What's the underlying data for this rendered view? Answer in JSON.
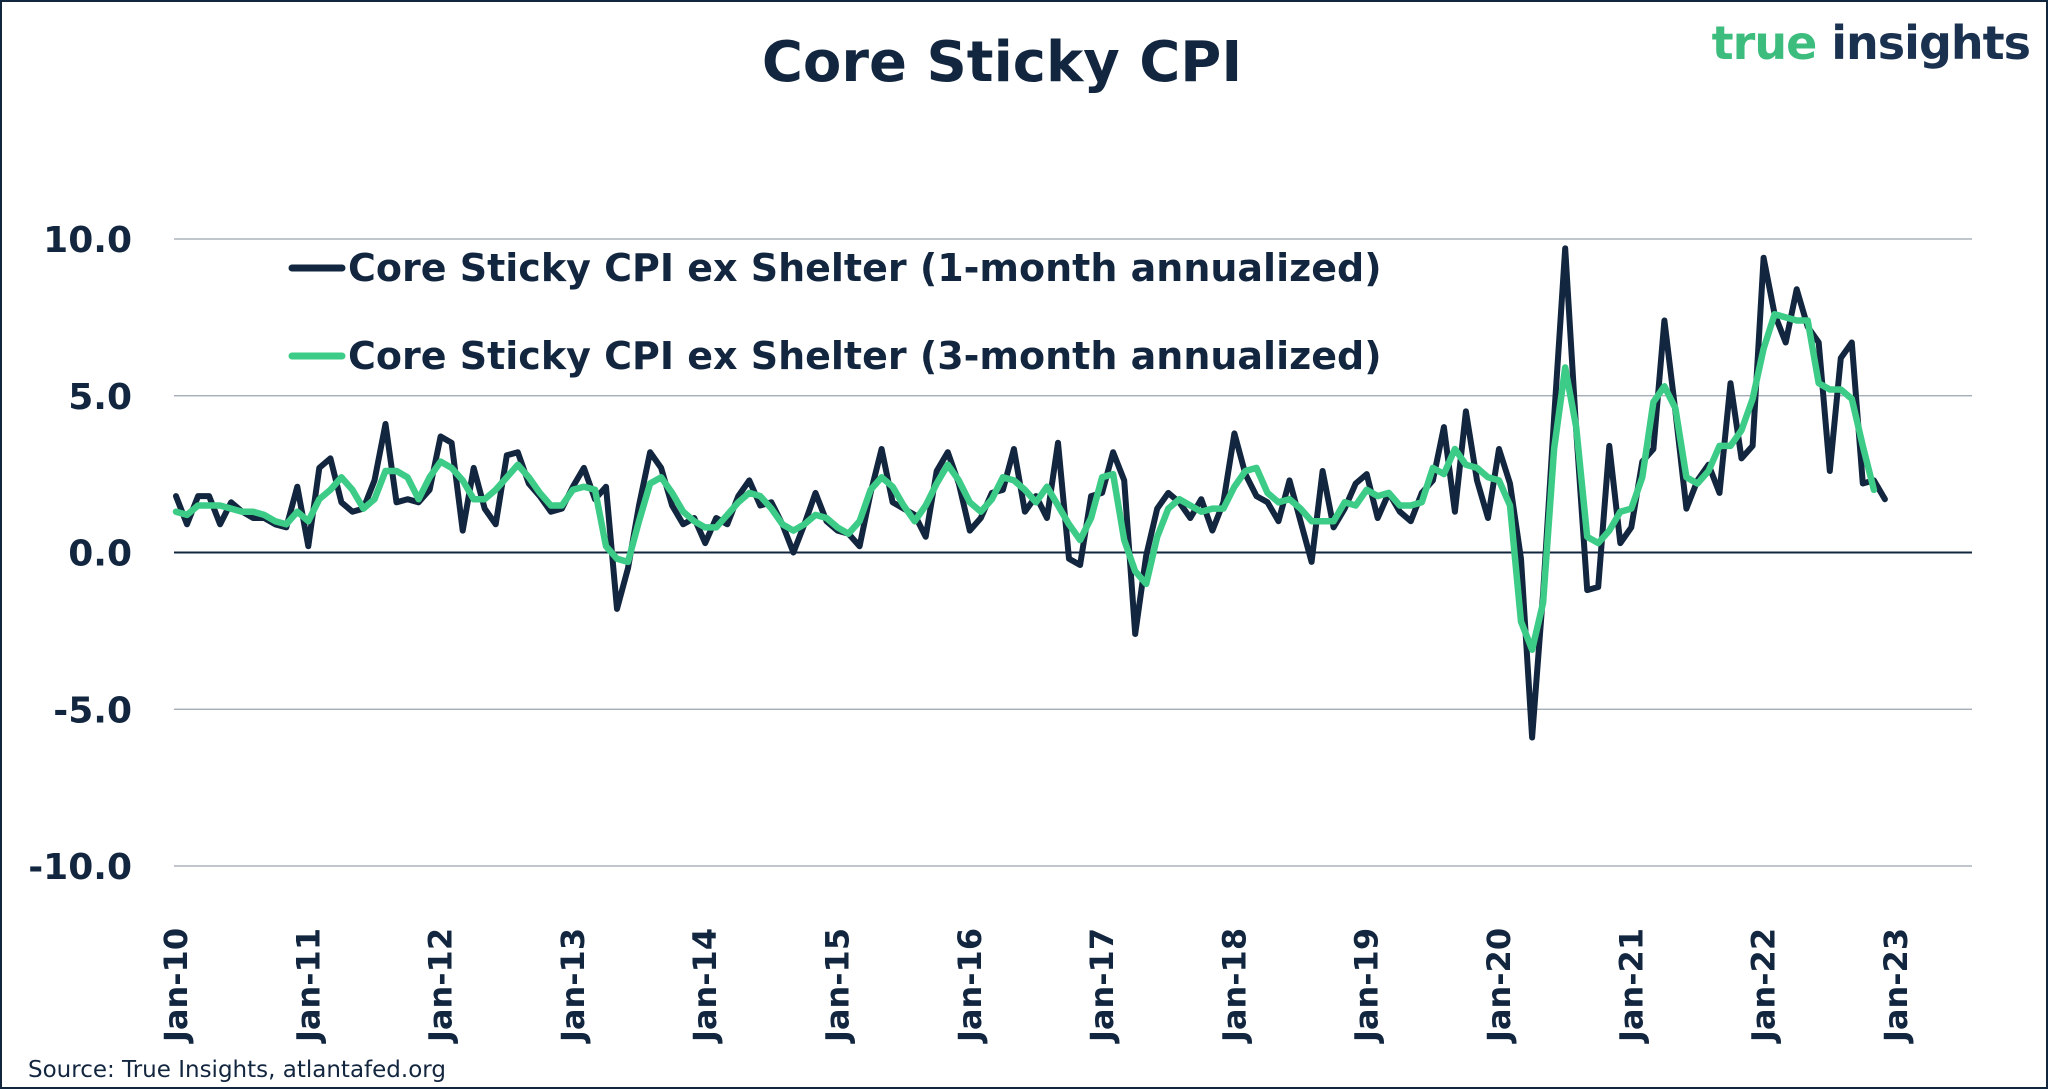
{
  "title": "Core Sticky CPI",
  "logo": {
    "part1": "true",
    "part2": "insights"
  },
  "source": "Source: True Insights, atlantafed.org",
  "colors": {
    "one_month": "#13263f",
    "three_month": "#3dcc87",
    "grid": "#9aa3ad",
    "zero_line": "#13263f"
  },
  "chart_data": {
    "type": "line",
    "title": "Core Sticky CPI",
    "xlabel": "",
    "ylabel": "",
    "ylim": [
      -10,
      10
    ],
    "yticks": [
      10,
      5,
      0,
      -5,
      -10
    ],
    "ytick_labels": [
      "10.0",
      "5.0",
      "0.0",
      "-5.0",
      "-10.0"
    ],
    "x_start": "Jan-10",
    "x_end": "Jan-23",
    "x_tick_labels": [
      "Jan-10",
      "Jan-11",
      "Jan-12",
      "Jan-13",
      "Jan-14",
      "Jan-15",
      "Jan-16",
      "Jan-17",
      "Jan-18",
      "Jan-19",
      "Jan-20",
      "Jan-21",
      "Jan-22",
      "Jan-23"
    ],
    "legend_position": "top-left",
    "series": [
      {
        "name": "Core Sticky CPI ex Shelter (1-month annualized)",
        "color": "#13263f",
        "values": [
          1.8,
          0.9,
          1.8,
          1.8,
          0.9,
          1.6,
          1.3,
          1.1,
          1.1,
          0.9,
          0.8,
          2.1,
          0.2,
          2.7,
          3.0,
          1.6,
          1.3,
          1.4,
          2.3,
          4.1,
          1.6,
          1.7,
          1.6,
          2.0,
          3.7,
          3.5,
          0.7,
          2.7,
          1.4,
          0.9,
          3.1,
          3.2,
          2.2,
          1.8,
          1.3,
          1.4,
          2.1,
          2.7,
          1.7,
          2.1,
          -1.8,
          -0.5,
          1.5,
          3.2,
          2.7,
          1.5,
          0.9,
          1.1,
          0.3,
          1.1,
          0.9,
          1.8,
          2.3,
          1.5,
          1.6,
          0.9,
          0.0,
          0.9,
          1.9,
          1.0,
          0.7,
          0.6,
          0.2,
          1.9,
          3.3,
          1.6,
          1.4,
          1.2,
          0.5,
          2.6,
          3.2,
          2.2,
          0.7,
          1.1,
          1.9,
          2.0,
          3.3,
          1.3,
          1.8,
          1.1,
          3.5,
          -0.2,
          -0.4,
          1.8,
          1.9,
          3.2,
          2.3,
          -2.6,
          -0.1,
          1.4,
          1.9,
          1.6,
          1.1,
          1.7,
          0.7,
          1.6,
          3.8,
          2.5,
          1.8,
          1.6,
          1.0,
          2.3,
          1.0,
          -0.3,
          2.6,
          0.8,
          1.4,
          2.2,
          2.5,
          1.1,
          1.9,
          1.3,
          1.0,
          1.9,
          2.3,
          4.0,
          1.3,
          4.5,
          2.3,
          1.1,
          3.3,
          2.2,
          -0.2,
          -5.9,
          -1.3,
          4.3,
          9.7,
          3.9,
          -1.2,
          -1.1,
          3.4,
          0.3,
          0.8,
          2.9,
          3.3,
          7.4,
          4.5,
          1.4,
          2.3,
          2.8,
          1.9,
          5.4,
          3.0,
          3.4,
          9.4,
          7.6,
          6.7,
          8.4,
          7.2,
          6.7,
          2.6,
          6.2,
          6.7,
          2.2,
          2.3,
          1.7
        ]
      },
      {
        "name": "Core Sticky CPI ex Shelter (3-month annualized)",
        "color": "#3dcc87",
        "values": [
          1.3,
          1.2,
          1.5,
          1.5,
          1.5,
          1.4,
          1.3,
          1.3,
          1.2,
          1.0,
          0.9,
          1.3,
          1.0,
          1.7,
          2.0,
          2.4,
          2.0,
          1.4,
          1.7,
          2.6,
          2.6,
          2.4,
          1.7,
          2.4,
          2.9,
          2.7,
          2.3,
          1.7,
          1.7,
          2.0,
          2.4,
          2.8,
          2.4,
          1.9,
          1.5,
          1.5,
          2.0,
          2.1,
          2.0,
          0.2,
          -0.2,
          -0.3,
          1.0,
          2.2,
          2.4,
          1.9,
          1.3,
          1.0,
          0.8,
          0.8,
          1.2,
          1.6,
          1.9,
          1.8,
          1.4,
          0.9,
          0.7,
          0.9,
          1.2,
          1.1,
          0.8,
          0.6,
          1.0,
          2.0,
          2.4,
          2.1,
          1.5,
          1.0,
          1.5,
          2.2,
          2.8,
          2.3,
          1.6,
          1.3,
          1.7,
          2.4,
          2.3,
          2.0,
          1.6,
          2.1,
          1.5,
          0.9,
          0.4,
          1.1,
          2.4,
          2.5,
          0.4,
          -0.6,
          -1.0,
          0.5,
          1.4,
          1.7,
          1.5,
          1.3,
          1.4,
          1.4,
          2.1,
          2.6,
          2.7,
          1.9,
          1.6,
          1.7,
          1.4,
          1.0,
          1.0,
          1.0,
          1.6,
          1.5,
          2.0,
          1.8,
          1.9,
          1.5,
          1.5,
          1.6,
          2.7,
          2.5,
          3.3,
          2.8,
          2.7,
          2.4,
          2.3,
          1.5,
          -2.2,
          -3.1,
          -1.6,
          3.3,
          5.9,
          4.0,
          0.5,
          0.3,
          0.7,
          1.3,
          1.4,
          2.4,
          4.8,
          5.3,
          4.6,
          2.4,
          2.2,
          2.6,
          3.4,
          3.4,
          3.9,
          4.9,
          6.5,
          7.6,
          7.5,
          7.4,
          7.4,
          5.4,
          5.2,
          5.2,
          4.9,
          3.4,
          2.0
        ]
      }
    ]
  }
}
